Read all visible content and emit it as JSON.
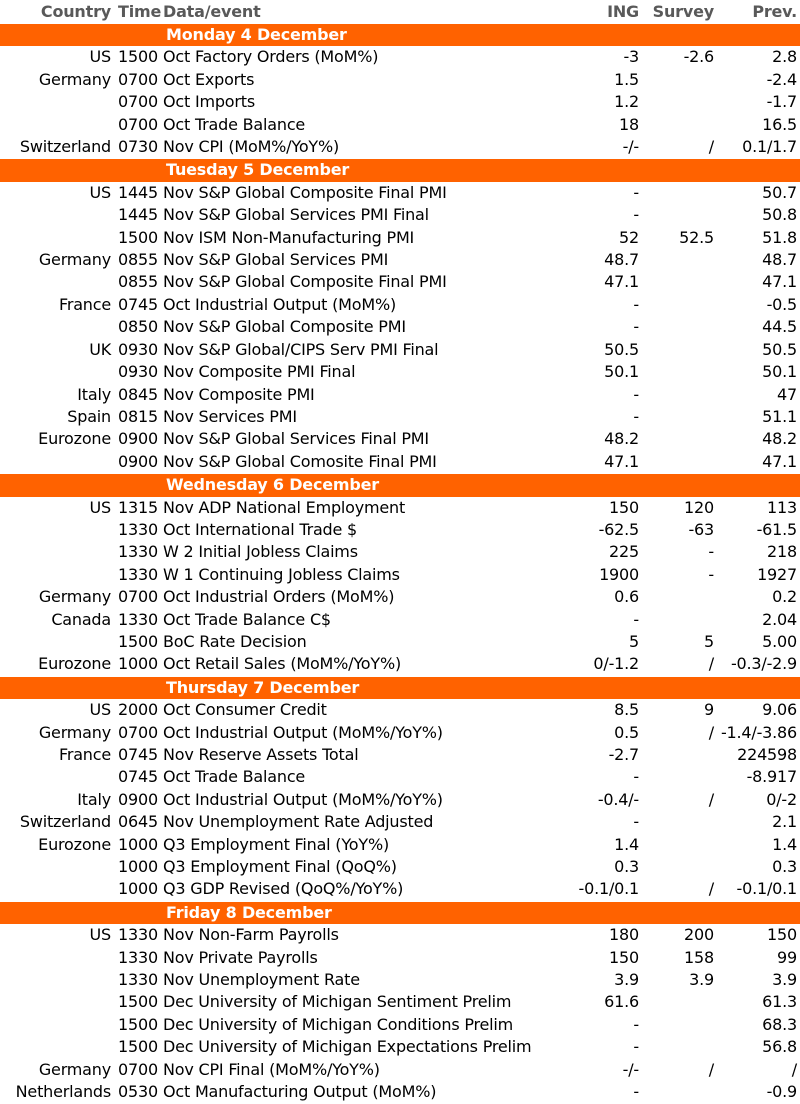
{
  "headers": {
    "country": "Country",
    "time": "Time",
    "event": "Data/event",
    "ing": "ING",
    "survey": "Survey",
    "prev": "Prev."
  },
  "colors": {
    "accent": "#ff6200",
    "header_text": "#595959"
  },
  "days": [
    {
      "title": "Monday 4 December",
      "rows": [
        {
          "country": "US",
          "time": "1500",
          "event": "Oct Factory Orders (MoM%)",
          "ing": "-3",
          "survey": "-2.6",
          "prev": "2.8"
        },
        {
          "country": "Germany",
          "time": "0700",
          "event": "Oct Exports",
          "ing": "1.5",
          "survey": "",
          "prev": "-2.4"
        },
        {
          "country": "",
          "time": "0700",
          "event": "Oct Imports",
          "ing": "1.2",
          "survey": "",
          "prev": "-1.7"
        },
        {
          "country": "",
          "time": "0700",
          "event": "Oct Trade Balance",
          "ing": "18",
          "survey": "",
          "prev": "16.5"
        },
        {
          "country": "Switzerland",
          "time": "0730",
          "event": "Nov CPI (MoM%/YoY%)",
          "ing": "-/-",
          "survey": "/",
          "prev": "0.1/1.7"
        }
      ]
    },
    {
      "title": "Tuesday 5 December",
      "rows": [
        {
          "country": "US",
          "time": "1445",
          "event": "Nov S&P Global Composite Final PMI",
          "ing": "-",
          "survey": "",
          "prev": "50.7"
        },
        {
          "country": "",
          "time": "1445",
          "event": "Nov S&P Global Services PMI Final",
          "ing": "-",
          "survey": "",
          "prev": "50.8"
        },
        {
          "country": "",
          "time": "1500",
          "event": "Nov ISM Non-Manufacturing PMI",
          "ing": "52",
          "survey": "52.5",
          "prev": "51.8"
        },
        {
          "country": "Germany",
          "time": "0855",
          "event": "Nov S&P Global Services PMI",
          "ing": "48.7",
          "survey": "",
          "prev": "48.7"
        },
        {
          "country": "",
          "time": "0855",
          "event": "Nov S&P Global Composite Final PMI",
          "ing": "47.1",
          "survey": "",
          "prev": "47.1"
        },
        {
          "country": "France",
          "time": "0745",
          "event": "Oct Industrial Output (MoM%)",
          "ing": "-",
          "survey": "",
          "prev": "-0.5"
        },
        {
          "country": "",
          "time": "0850",
          "event": "Nov S&P Global Composite PMI",
          "ing": "-",
          "survey": "",
          "prev": "44.5"
        },
        {
          "country": "UK",
          "time": "0930",
          "event": "Nov S&P Global/CIPS Serv PMI Final",
          "ing": "50.5",
          "survey": "",
          "prev": "50.5"
        },
        {
          "country": "",
          "time": "0930",
          "event": "Nov Composite PMI Final",
          "ing": "50.1",
          "survey": "",
          "prev": "50.1"
        },
        {
          "country": "Italy",
          "time": "0845",
          "event": "Nov Composite PMI",
          "ing": "-",
          "survey": "",
          "prev": "47"
        },
        {
          "country": "Spain",
          "time": "0815",
          "event": "Nov Services PMI",
          "ing": "-",
          "survey": "",
          "prev": "51.1"
        },
        {
          "country": "Eurozone",
          "time": "0900",
          "event": "Nov S&P Global Services Final PMI",
          "ing": "48.2",
          "survey": "",
          "prev": "48.2"
        },
        {
          "country": "",
          "time": "0900",
          "event": "Nov S&P Global Comosite Final PMI",
          "ing": "47.1",
          "survey": "",
          "prev": "47.1"
        }
      ]
    },
    {
      "title": "Wednesday 6 December",
      "rows": [
        {
          "country": "US",
          "time": "1315",
          "event": "Nov ADP National Employment",
          "ing": "150",
          "survey": "120",
          "prev": "113"
        },
        {
          "country": "",
          "time": "1330",
          "event": "Oct International Trade $",
          "ing": "-62.5",
          "survey": "-63",
          "prev": "-61.5"
        },
        {
          "country": "",
          "time": "1330",
          "event": "W 2 Initial Jobless Claims",
          "ing": "225",
          "survey": "-",
          "prev": "218"
        },
        {
          "country": "",
          "time": "1330",
          "event": "W 1 Continuing Jobless Claims",
          "ing": "1900",
          "survey": "-",
          "prev": "1927"
        },
        {
          "country": "Germany",
          "time": "0700",
          "event": "Oct Industrial Orders (MoM%)",
          "ing": "0.6",
          "survey": "",
          "prev": "0.2"
        },
        {
          "country": "Canada",
          "time": "1330",
          "event": "Oct Trade Balance C$",
          "ing": "-",
          "survey": "",
          "prev": "2.04"
        },
        {
          "country": "",
          "time": "1500",
          "event": "BoC Rate Decision",
          "ing": "5",
          "survey": "5",
          "prev": "5.00"
        },
        {
          "country": "Eurozone",
          "time": "1000",
          "event": "Oct Retail Sales (MoM%/YoY%)",
          "ing": "0/-1.2",
          "survey": "/",
          "prev": "-0.3/-2.9"
        }
      ]
    },
    {
      "title": "Thursday 7 December",
      "rows": [
        {
          "country": "US",
          "time": "2000",
          "event": "Oct Consumer Credit",
          "ing": "8.5",
          "survey": "9",
          "prev": "9.06"
        },
        {
          "country": "Germany",
          "time": "0700",
          "event": "Oct Industrial Output (MoM%/YoY%)",
          "ing": "0.5",
          "survey": "/",
          "prev": "-1.4/-3.86"
        },
        {
          "country": "France",
          "time": "0745",
          "event": "Nov Reserve Assets Total",
          "ing": "-2.7",
          "survey": "",
          "prev": "224598"
        },
        {
          "country": "",
          "time": "0745",
          "event": "Oct Trade Balance",
          "ing": "-",
          "survey": "",
          "prev": "-8.917"
        },
        {
          "country": "Italy",
          "time": "0900",
          "event": "Oct Industrial Output (MoM%/YoY%)",
          "ing": "-0.4/-",
          "survey": "/",
          "prev": "0/-2"
        },
        {
          "country": "Switzerland",
          "time": "0645",
          "event": "Nov Unemployment Rate Adjusted",
          "ing": "-",
          "survey": "",
          "prev": "2.1"
        },
        {
          "country": "Eurozone",
          "time": "1000",
          "event": "Q3 Employment Final (YoY%)",
          "ing": "1.4",
          "survey": "",
          "prev": "1.4"
        },
        {
          "country": "",
          "time": "1000",
          "event": "Q3 Employment Final (QoQ%)",
          "ing": "0.3",
          "survey": "",
          "prev": "0.3"
        },
        {
          "country": "",
          "time": "1000",
          "event": "Q3 GDP Revised (QoQ%/YoY%)",
          "ing": "-0.1/0.1",
          "survey": "/",
          "prev": "-0.1/0.1"
        }
      ]
    },
    {
      "title": "Friday 8 December",
      "rows": [
        {
          "country": "US",
          "time": "1330",
          "event": "Nov Non-Farm Payrolls",
          "ing": "180",
          "survey": "200",
          "prev": "150"
        },
        {
          "country": "",
          "time": "1330",
          "event": "Nov Private Payrolls",
          "ing": "150",
          "survey": "158",
          "prev": "99"
        },
        {
          "country": "",
          "time": "1330",
          "event": "Nov Unemployment Rate",
          "ing": "3.9",
          "survey": "3.9",
          "prev": "3.9"
        },
        {
          "country": "",
          "time": "1500",
          "event": "Dec University of Michigan Sentiment Prelim",
          "ing": "61.6",
          "survey": "",
          "prev": "61.3"
        },
        {
          "country": "",
          "time": "1500",
          "event": "Dec University of Michigan Conditions Prelim",
          "ing": "-",
          "survey": "",
          "prev": "68.3"
        },
        {
          "country": "",
          "time": "1500",
          "event": "Dec University of Michigan Expectations Prelim",
          "ing": "-",
          "survey": "",
          "prev": "56.8"
        },
        {
          "country": "Germany",
          "time": "0700",
          "event": "Nov CPI Final (MoM%/YoY%)",
          "ing": "-/-",
          "survey": "/",
          "prev": "/"
        },
        {
          "country": "Netherlands",
          "time": "0530",
          "event": "Oct Manufacturing Output (MoM%)",
          "ing": "-",
          "survey": "",
          "prev": "-0.9"
        }
      ]
    }
  ]
}
